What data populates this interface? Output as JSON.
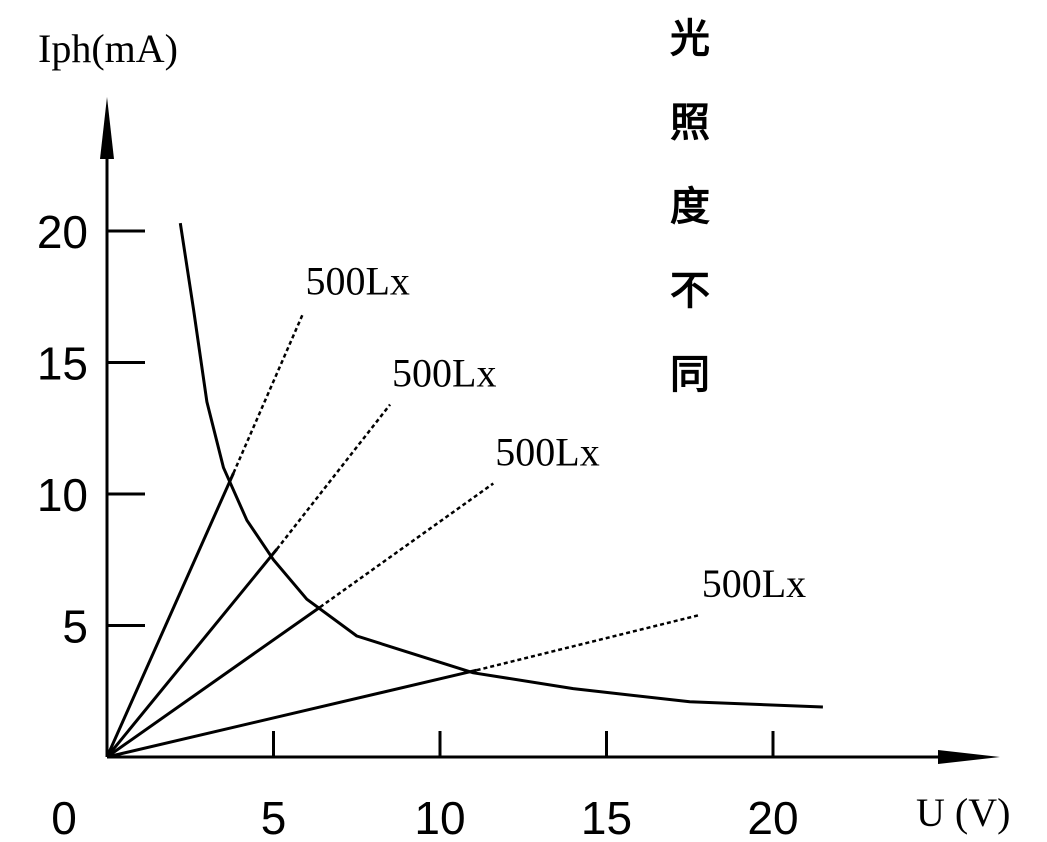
{
  "chart_data": {
    "type": "line",
    "xlabel": "U (V)",
    "ylabel": "Iph(mA)",
    "origin_label": "0",
    "xlim": [
      0,
      27
    ],
    "ylim": [
      0,
      25
    ],
    "xticks": [
      5,
      10,
      15,
      20
    ],
    "yticks": [
      5,
      10,
      15,
      20
    ],
    "annotation": "光照度不同",
    "curve": {
      "x": [
        2.2,
        2.6,
        3.0,
        3.5,
        4.2,
        5.0,
        6.0,
        7.5,
        9.0,
        11.0,
        14.0,
        17.5,
        21.5
      ],
      "y": [
        20.3,
        17.0,
        13.5,
        11.0,
        9.0,
        7.5,
        6.0,
        4.6,
        4.0,
        3.2,
        2.6,
        2.1,
        1.9
      ]
    },
    "series": [
      {
        "name": "500Lx",
        "solid_end": [
          3.8,
          10.8
        ],
        "dashed_end": [
          5.9,
          16.9
        ]
      },
      {
        "name": "500Lx",
        "solid_end": [
          5.1,
          7.9
        ],
        "dashed_end": [
          8.5,
          13.4
        ]
      },
      {
        "name": "500Lx",
        "solid_end": [
          6.4,
          5.7
        ],
        "dashed_end": [
          11.6,
          10.4
        ]
      },
      {
        "name": "500Lx",
        "solid_end": [
          11.1,
          3.3
        ],
        "dashed_end": [
          17.8,
          5.4
        ]
      }
    ]
  }
}
